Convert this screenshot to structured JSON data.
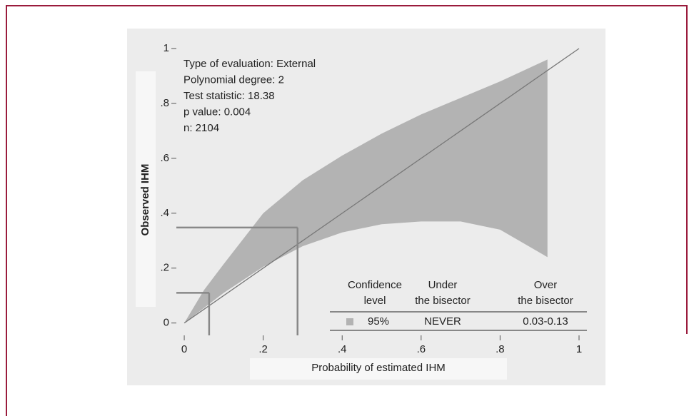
{
  "chart_data": {
    "type": "calibration_belt",
    "xlabel": "Probability of estimated IHM",
    "ylabel": "Observed IHM",
    "xlim": [
      -0.02,
      1
    ],
    "ylim": [
      -0.045,
      1
    ],
    "xticks": [
      {
        "value": 0,
        "label": "0"
      },
      {
        "value": 0.2,
        "label": ".2"
      },
      {
        "value": 0.4,
        "label": ".4"
      },
      {
        "value": 0.6,
        "label": ".6"
      },
      {
        "value": 0.8,
        "label": ".8"
      },
      {
        "value": 1,
        "label": "1"
      }
    ],
    "yticks": [
      {
        "value": 0,
        "label": "0"
      },
      {
        "value": 0.2,
        "label": ".2"
      },
      {
        "value": 0.4,
        "label": ".4"
      },
      {
        "value": 0.6,
        "label": ".6"
      },
      {
        "value": 0.8,
        "label": ".8"
      },
      {
        "value": 1,
        "label": "1"
      }
    ],
    "annotations": [
      "Type of evaluation: External",
      "Polynomial degree: 2",
      "Test statistic: 18.38",
      "p value: 0.004",
      "n: 2104"
    ],
    "belt": {
      "color": "#b3b3b3",
      "x": [
        0,
        0.05,
        0.1,
        0.2,
        0.3,
        0.4,
        0.5,
        0.6,
        0.7,
        0.8,
        0.92
      ],
      "upper": [
        0,
        0.12,
        0.215,
        0.4,
        0.52,
        0.61,
        0.69,
        0.76,
        0.82,
        0.88,
        0.96
      ],
      "lower": [
        0,
        0.055,
        0.11,
        0.205,
        0.28,
        0.33,
        0.36,
        0.37,
        0.37,
        0.34,
        0.24
      ]
    },
    "bisector": {
      "x": [
        0,
        1
      ],
      "y": [
        0,
        1
      ]
    },
    "reference_lines": [
      {
        "x": 0.063,
        "y": 0.11
      },
      {
        "x": 0.287,
        "y": 0.348
      }
    ],
    "legend_table": {
      "headers": [
        [
          "Confidence",
          "level"
        ],
        [
          "Under",
          "the bisector"
        ],
        [
          "Over",
          "the bisector"
        ]
      ],
      "rows": [
        [
          "95%",
          "NEVER",
          "0.03-0.13"
        ]
      ]
    }
  }
}
